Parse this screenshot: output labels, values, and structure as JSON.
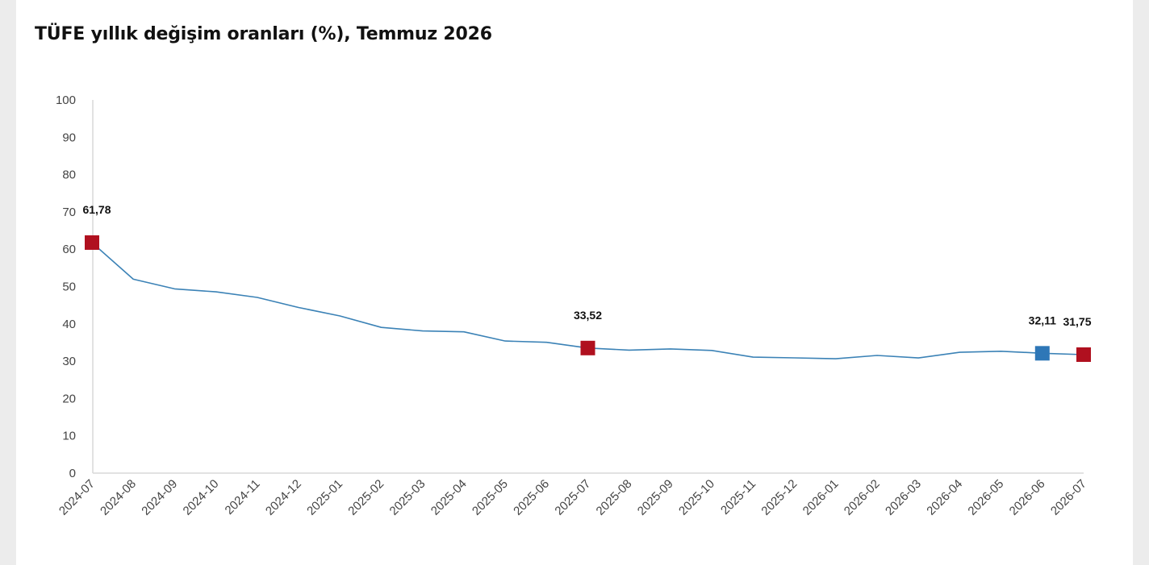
{
  "title": "TÜFE yıllık değişim oranları (%), Temmuz 2026",
  "colors": {
    "line": "#3b82b6",
    "highlight_red": "#b0101f",
    "highlight_blue": "#2e77b7",
    "axis": "#d9d9d9"
  },
  "chart_data": {
    "type": "line",
    "title": "TÜFE yıllık değişim oranları (%), Temmuz 2026",
    "xlabel": "",
    "ylabel": "",
    "ylim": [
      0,
      100
    ],
    "yticks": [
      "0",
      "10",
      "20",
      "30",
      "40",
      "50",
      "60",
      "70",
      "80",
      "90",
      "100"
    ],
    "grid": false,
    "categories": [
      "2024-07",
      "2024-08",
      "2024-09",
      "2024-10",
      "2024-11",
      "2024-12",
      "2025-01",
      "2025-02",
      "2025-03",
      "2025-04",
      "2025-05",
      "2025-06",
      "2025-07",
      "2025-08",
      "2025-09",
      "2025-10",
      "2025-11",
      "2025-12",
      "2026-01",
      "2026-02",
      "2026-03",
      "2026-04",
      "2026-05",
      "2026-06",
      "2026-07"
    ],
    "series": [
      {
        "values": [
          61.78,
          51.97,
          49.38,
          48.58,
          47.09,
          44.38,
          42.12,
          39.05,
          38.1,
          37.86,
          35.41,
          35.05,
          33.52,
          32.95,
          33.29,
          32.87,
          31.07,
          30.89,
          30.65,
          31.53,
          30.87,
          32.37,
          32.66,
          32.11,
          31.75
        ]
      }
    ],
    "markers": [
      {
        "index": 0,
        "label": "61,78",
        "color": "red"
      },
      {
        "index": 12,
        "label": "33,52",
        "color": "red"
      },
      {
        "index": 23,
        "label": "32,11",
        "color": "blue"
      },
      {
        "index": 24,
        "label": "31,75",
        "color": "red"
      }
    ]
  }
}
